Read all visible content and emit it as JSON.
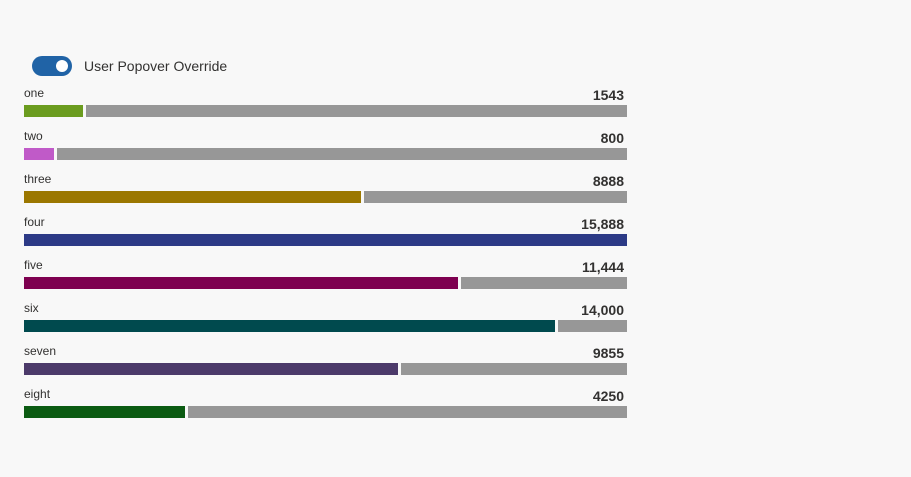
{
  "toggle": {
    "label": "User Popover Override",
    "on": true,
    "color": "#2063a6"
  },
  "chart_data": {
    "type": "bar",
    "orientation": "horizontal-stacked-meter",
    "max": 15888,
    "remaining_color": "#979797",
    "items": [
      {
        "label": "one",
        "value": 1543,
        "display": "1543",
        "color": "#6b9c1f"
      },
      {
        "label": "two",
        "value": 800,
        "display": "800",
        "color": "#c05ac8"
      },
      {
        "label": "three",
        "value": 8888,
        "display": "8888",
        "color": "#9b7700"
      },
      {
        "label": "four",
        "value": 15888,
        "display": "15,888",
        "color": "#2c3a86"
      },
      {
        "label": "five",
        "value": 11444,
        "display": "11,444",
        "color": "#7e0050"
      },
      {
        "label": "six",
        "value": 14000,
        "display": "14,000",
        "color": "#004a4e"
      },
      {
        "label": "seven",
        "value": 9855,
        "display": "9855",
        "color": "#4c3a6a"
      },
      {
        "label": "eight",
        "value": 4250,
        "display": "4250",
        "color": "#0b5b12"
      }
    ]
  }
}
